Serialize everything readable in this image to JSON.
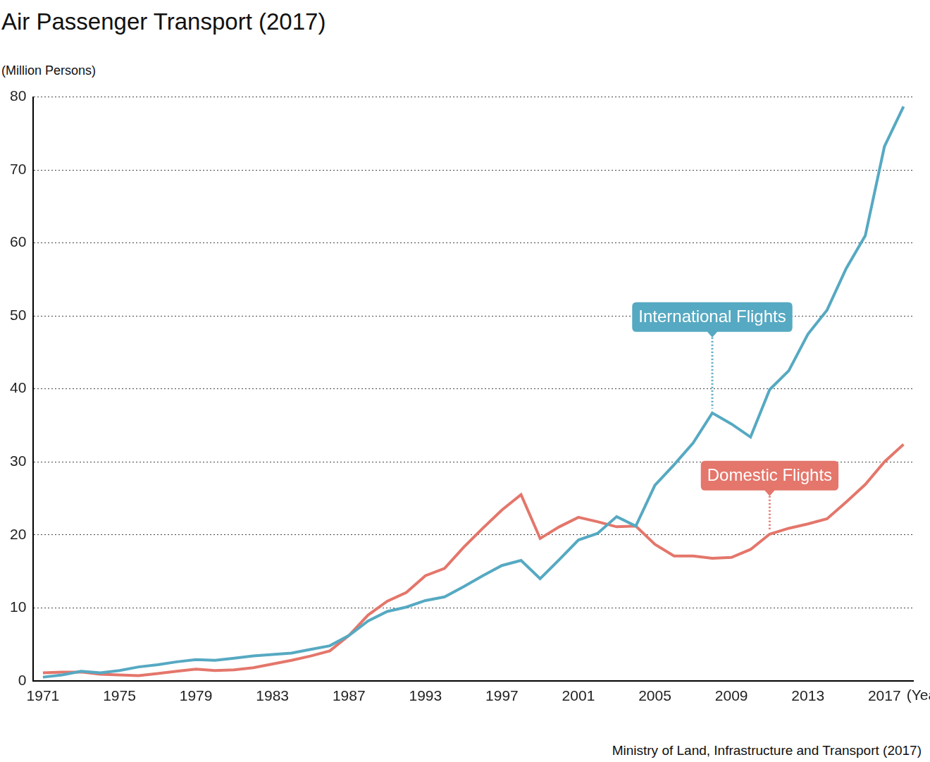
{
  "chart_data": {
    "type": "line",
    "title": "Air Passenger Transport (2017)",
    "y_label": "(Million Persons)",
    "x_label": "(Year)",
    "source": "Ministry of Land, Infrastructure and Transport (2017)",
    "categories": [
      "1971",
      null,
      null,
      null,
      "1975",
      null,
      null,
      null,
      "1979",
      null,
      null,
      null,
      "1983",
      null,
      null,
      null,
      "1987",
      null,
      null,
      null,
      "1993",
      null,
      null,
      null,
      "1997",
      null,
      null,
      null,
      "2001",
      null,
      null,
      null,
      "2005",
      null,
      null,
      null,
      "2009",
      null,
      null,
      null,
      "2013",
      null,
      null,
      null,
      "2017",
      null
    ],
    "series": [
      {
        "name": "International Flights",
        "color": "#56a9c2",
        "values": [
          0.5,
          0.8,
          1.3,
          1.1,
          1.4,
          1.9,
          2.2,
          2.6,
          2.9,
          2.8,
          3.1,
          3.4,
          3.6,
          3.8,
          4.3,
          4.8,
          6.2,
          8.2,
          9.5,
          10.1,
          11.0,
          11.5,
          12.9,
          14.4,
          15.8,
          16.5,
          14.0,
          16.6,
          19.3,
          20.2,
          22.5,
          21.2,
          26.8,
          29.6,
          32.6,
          36.7,
          35.2,
          33.4,
          39.9,
          42.5,
          47.5,
          50.8,
          56.5,
          61.0,
          73.2,
          78.7
        ]
      },
      {
        "name": "Domestic Flights",
        "color": "#e4766b",
        "values": [
          1.1,
          1.2,
          1.2,
          0.9,
          0.8,
          0.7,
          1.0,
          1.3,
          1.6,
          1.4,
          1.5,
          1.8,
          2.3,
          2.8,
          3.4,
          4.1,
          6.2,
          9.0,
          10.9,
          12.1,
          14.4,
          15.4,
          18.3,
          20.9,
          23.4,
          25.5,
          19.5,
          21.1,
          22.4,
          21.8,
          21.1,
          21.2,
          18.7,
          17.1,
          17.1,
          16.8,
          16.9,
          18.0,
          20.1,
          20.9,
          21.5,
          22.2,
          24.5,
          26.9,
          30.0,
          32.4
        ]
      }
    ],
    "ylim": [
      0,
      80
    ],
    "yticks": [
      0,
      10,
      20,
      30,
      40,
      50,
      60,
      70,
      80
    ],
    "grid": true
  }
}
